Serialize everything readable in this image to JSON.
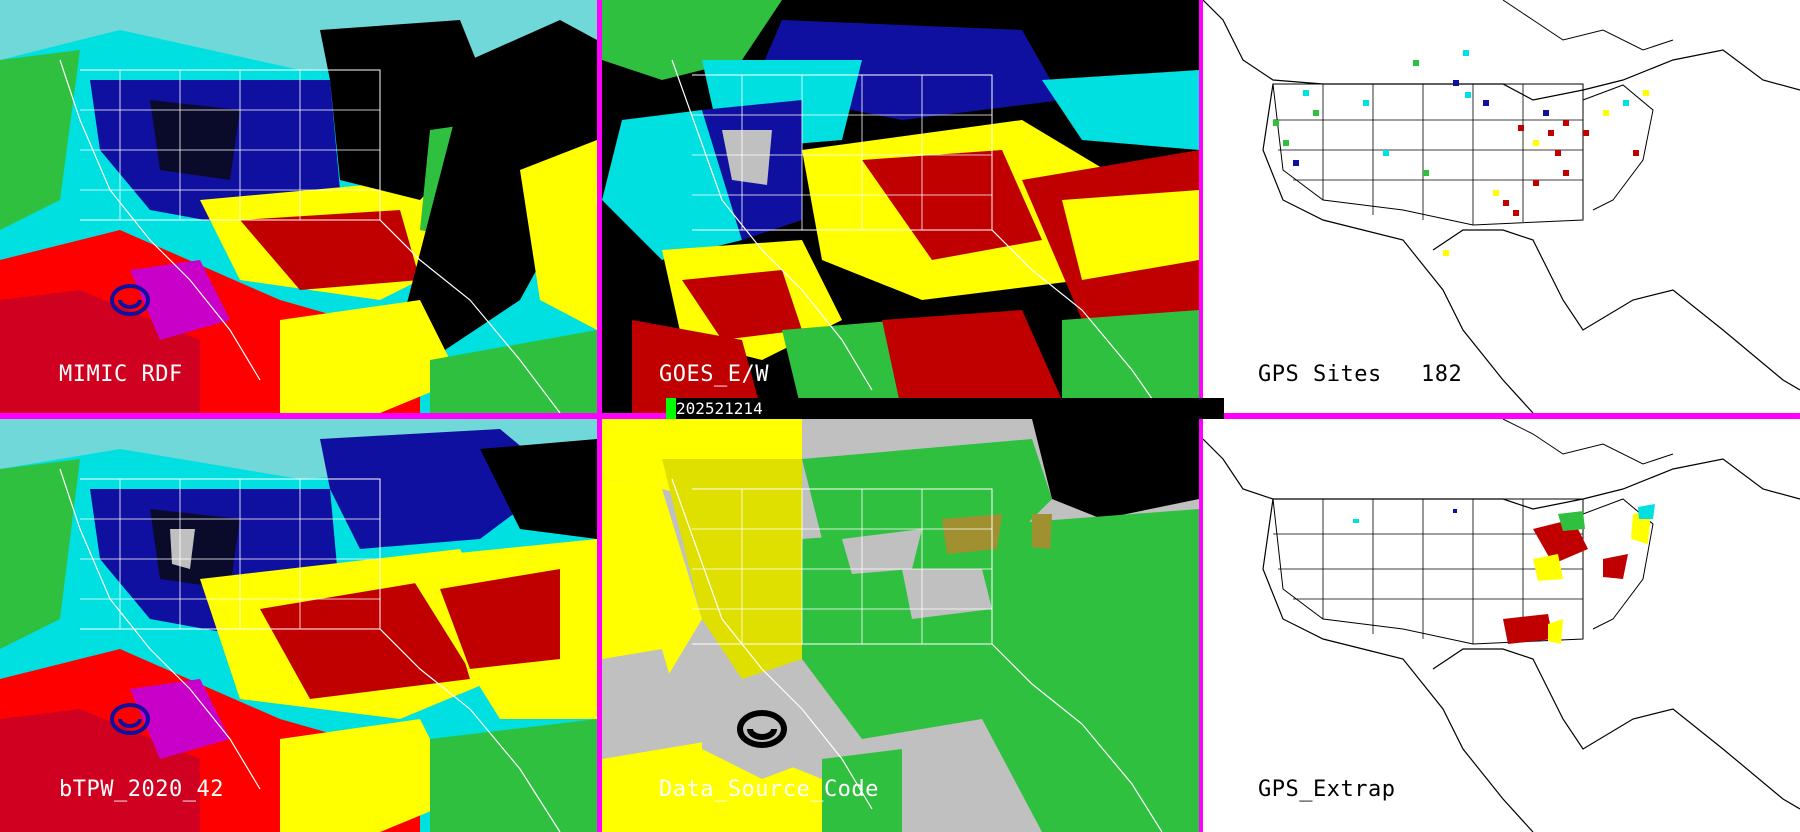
{
  "panels": [
    {
      "id": "mimic",
      "label": "MIMIC RDF"
    },
    {
      "id": "goes",
      "label": "GOES_E/W"
    },
    {
      "id": "gps-sites",
      "label": "GPS Sites",
      "count": "182"
    },
    {
      "id": "btpw",
      "label": "bTPW_2020_42"
    },
    {
      "id": "source",
      "label": "Data_Source_Code"
    },
    {
      "id": "gps-extrap",
      "label": "GPS_Extrap"
    }
  ],
  "timestamp": "202521214",
  "colors": {
    "frame": "#ff00ff",
    "tpw_scale": [
      "#0a0a2a",
      "#1010a0",
      "#00e0e0",
      "#00c000",
      "#ffff00",
      "#c00000",
      "#ff0000",
      "#ff00ff",
      "#c0c0c0"
    ],
    "source_codes": [
      "#c0c0c0",
      "#ffff00",
      "#00c000",
      "#000000",
      "#a09030"
    ]
  }
}
